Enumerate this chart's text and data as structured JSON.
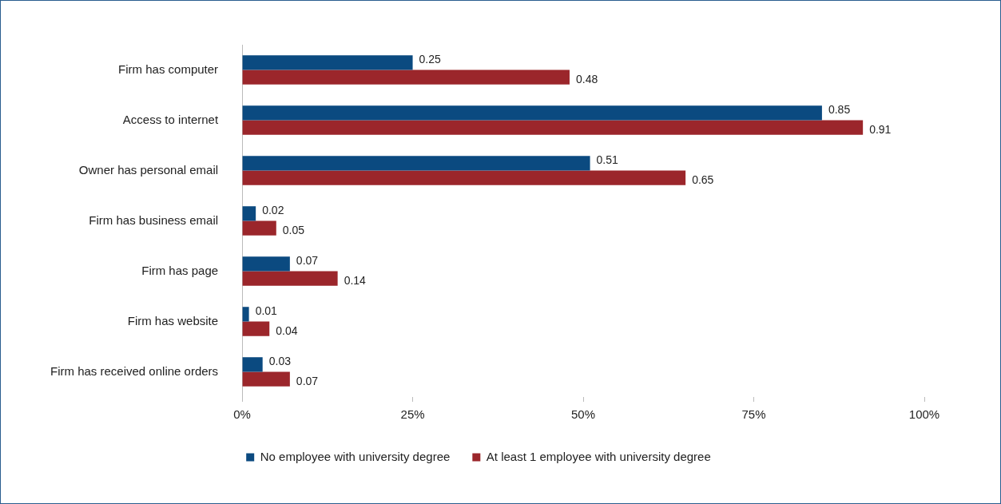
{
  "chart_data": {
    "type": "bar",
    "orientation": "horizontal",
    "categories": [
      "Firm has computer",
      "Access to internet",
      "Owner has personal email",
      "Firm has business email",
      "Firm has page",
      "Firm has website",
      "Firm has received online orders"
    ],
    "series": [
      {
        "name": "No employee with university degree",
        "color": "#0b4a80",
        "values": [
          0.25,
          0.85,
          0.51,
          0.02,
          0.07,
          0.01,
          0.03
        ]
      },
      {
        "name": "At least 1 employee with university degree",
        "color": "#9b262b",
        "values": [
          0.48,
          0.91,
          0.65,
          0.05,
          0.14,
          0.04,
          0.07
        ]
      }
    ],
    "xlim": [
      0,
      1
    ],
    "xticks": [
      {
        "value": 0,
        "label": "0%"
      },
      {
        "value": 0.25,
        "label": "25%"
      },
      {
        "value": 0.5,
        "label": "50%"
      },
      {
        "value": 0.75,
        "label": "75%"
      },
      {
        "value": 1,
        "label": "100%"
      }
    ],
    "data_labels": true,
    "grid": false,
    "legend": "bottom"
  }
}
